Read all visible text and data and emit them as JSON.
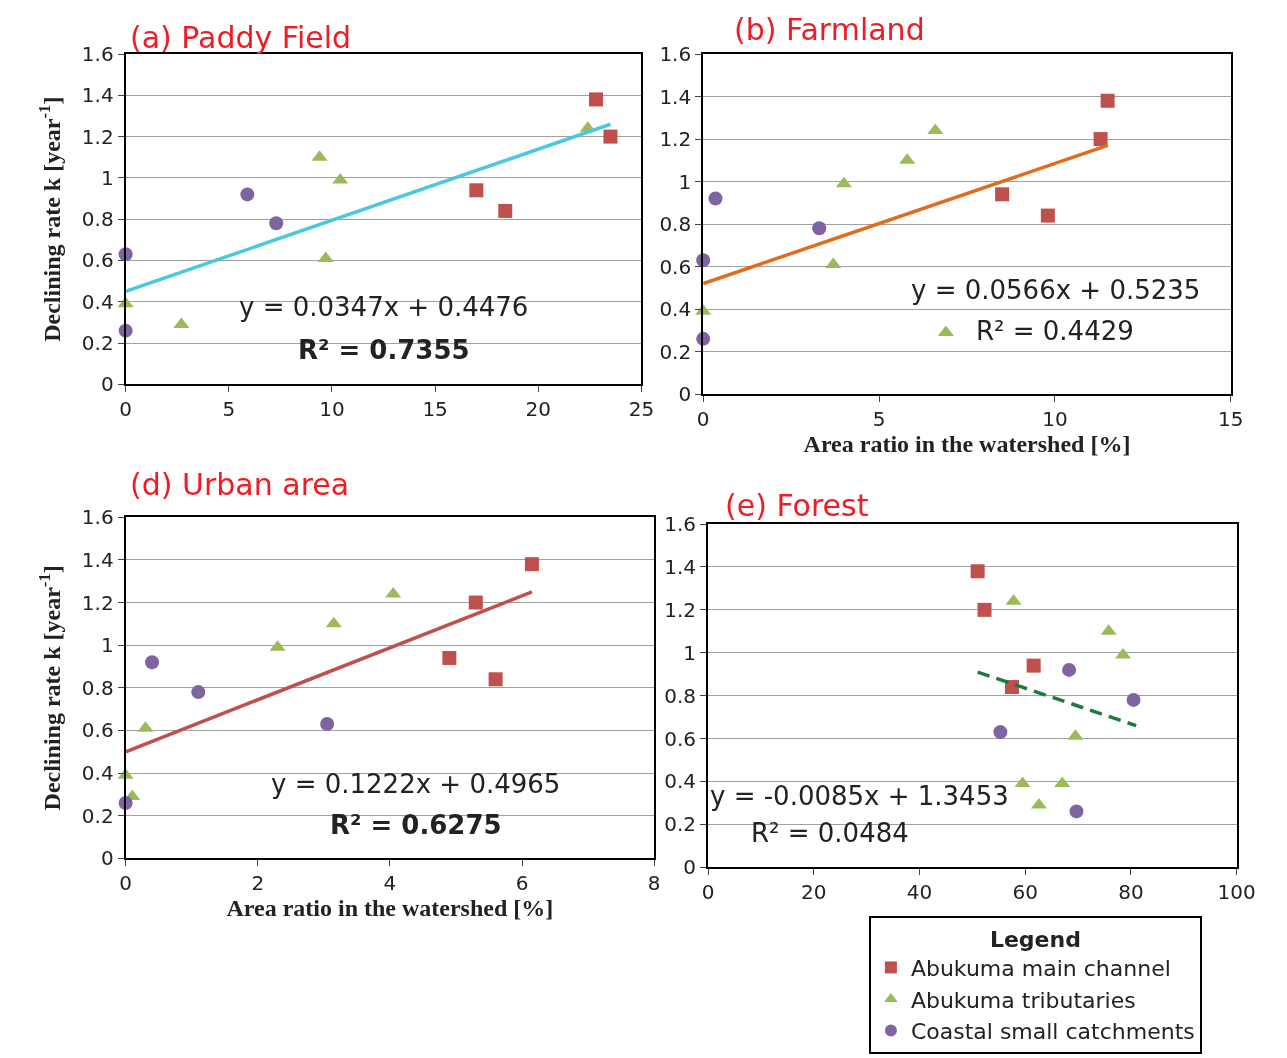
{
  "chart_data": [
    {
      "type": "scatter",
      "title": "(a) Paddy Field",
      "ylabel": "Declining rate k [year$^{-1}$]",
      "xlim": [
        0,
        25
      ],
      "ylim": [
        0,
        1.6
      ],
      "xticks": [
        0,
        5,
        10,
        15,
        20,
        25
      ],
      "yticks": [
        0,
        0.2,
        0.4,
        0.6,
        0.8,
        1,
        1.2,
        1.4,
        1.6
      ],
      "grid": "y",
      "series": [
        {
          "color": "#c0504d",
          "marker": "square",
          "x": [
            22.8,
            23.5,
            17.0,
            18.4
          ],
          "values": [
            1.38,
            1.2,
            0.94,
            0.84
          ]
        },
        {
          "color": "#9bbb59",
          "marker": "triangle",
          "x": [
            22.4,
            9.4,
            10.4,
            9.7,
            0,
            2.7
          ],
          "values": [
            1.24,
            1.1,
            0.99,
            0.61,
            0.39,
            0.29
          ]
        },
        {
          "color": "#8064a2",
          "marker": "circle",
          "x": [
            5.9,
            7.3,
            0,
            0
          ],
          "values": [
            0.92,
            0.78,
            0.63,
            0.26
          ]
        },
        {
          "type": "line",
          "color": "#4bc8e0",
          "line_style": "solid",
          "x": [
            0,
            23.5
          ],
          "values": [
            0.45,
            1.26
          ]
        }
      ],
      "annotations": [
        "y = 0.0347x + 0.4476",
        "R² = 0.7355"
      ]
    },
    {
      "type": "scatter",
      "title": "(b) Farmland",
      "xlabel": "Area ratio in the watershed [%]",
      "xlim": [
        0,
        15
      ],
      "ylim": [
        0,
        1.6
      ],
      "xticks": [
        0,
        5,
        10,
        15
      ],
      "yticks": [
        0,
        0.2,
        0.4,
        0.6,
        0.8,
        1,
        1.2,
        1.4,
        1.6
      ],
      "grid": "y",
      "series": [
        {
          "color": "#c0504d",
          "marker": "square",
          "x": [
            11.5,
            11.3,
            8.5,
            9.8
          ],
          "values": [
            1.38,
            1.2,
            0.94,
            0.84
          ]
        },
        {
          "color": "#9bbb59",
          "marker": "triangle",
          "x": [
            6.6,
            5.8,
            4.0,
            3.7,
            0,
            6.9
          ],
          "values": [
            1.24,
            1.1,
            0.99,
            0.61,
            0.39,
            0.29
          ]
        },
        {
          "color": "#8064a2",
          "marker": "circle",
          "x": [
            0.35,
            3.3,
            0,
            0
          ],
          "values": [
            0.92,
            0.78,
            0.63,
            0.26
          ]
        },
        {
          "type": "line",
          "color": "#e36c1a",
          "line_style": "solid",
          "x": [
            0,
            11.5
          ],
          "values": [
            0.52,
            1.17
          ]
        }
      ],
      "annotations": [
        "y = 0.0566x + 0.5235",
        "R² = 0.4429"
      ]
    },
    {
      "type": "scatter",
      "title": "(d) Urban area",
      "xlabel": "Area ratio in the watershed [%]",
      "ylabel": "Declining rate k [year$^{-1}$]",
      "xlim": [
        0,
        8
      ],
      "ylim": [
        0,
        1.6
      ],
      "xticks": [
        0,
        2,
        4,
        6,
        8
      ],
      "yticks": [
        0,
        0.2,
        0.4,
        0.6,
        0.8,
        1,
        1.2,
        1.4,
        1.6
      ],
      "grid": "y",
      "series": [
        {
          "color": "#c0504d",
          "marker": "square",
          "x": [
            6.15,
            5.3,
            4.9,
            5.6
          ],
          "values": [
            1.38,
            1.2,
            0.94,
            0.84
          ]
        },
        {
          "color": "#9bbb59",
          "marker": "triangle",
          "x": [
            4.05,
            3.15,
            2.3,
            0.3,
            0,
            0.1
          ],
          "values": [
            1.24,
            1.1,
            0.99,
            0.61,
            0.39,
            0.29
          ]
        },
        {
          "color": "#8064a2",
          "marker": "circle",
          "x": [
            0.4,
            1.1,
            3.05,
            0
          ],
          "values": [
            0.92,
            0.78,
            0.63,
            0.26
          ]
        },
        {
          "type": "line",
          "color": "#c0504d",
          "line_style": "solid",
          "x": [
            0,
            6.15
          ],
          "values": [
            0.5,
            1.25
          ]
        }
      ],
      "annotations": [
        "y = 0.1222x + 0.4965",
        "R² = 0.6275"
      ]
    },
    {
      "type": "scatter",
      "title": "(e) Forest",
      "xlim": [
        0,
        100
      ],
      "ylim": [
        0,
        1.6
      ],
      "xticks": [
        0,
        20,
        40,
        60,
        80,
        100
      ],
      "yticks": [
        0,
        0.2,
        0.4,
        0.6,
        0.8,
        1,
        1.2,
        1.4,
        1.6
      ],
      "grid": "y",
      "legend": "bottom right",
      "legend_title": "Legend",
      "series": [
        {
          "name": "Abukuma main channel",
          "color": "#c0504d",
          "marker": "square",
          "x": [
            51,
            52.3,
            61.6,
            57.5
          ],
          "values": [
            1.38,
            1.2,
            0.94,
            0.84
          ]
        },
        {
          "name": "Abukuma tributaries",
          "color": "#9bbb59",
          "marker": "triangle",
          "x": [
            57.8,
            75.8,
            78.5,
            69.5,
            59.5,
            67,
            62.6
          ],
          "values": [
            1.24,
            1.1,
            0.99,
            0.61,
            0.39,
            0.39,
            0.29
          ]
        },
        {
          "name": "Coastal small catchments",
          "color": "#8064a2",
          "marker": "circle",
          "x": [
            68.3,
            80.5,
            55.3,
            69.7
          ],
          "values": [
            0.92,
            0.78,
            0.63,
            0.26
          ]
        },
        {
          "type": "line",
          "color": "#1e7a3c",
          "line_style": "dashed",
          "x": [
            51,
            81
          ],
          "values": [
            0.91,
            0.66
          ]
        }
      ],
      "annotations": [
        "y = -0.0085x + 1.3453",
        "R² = 0.0484"
      ]
    }
  ]
}
